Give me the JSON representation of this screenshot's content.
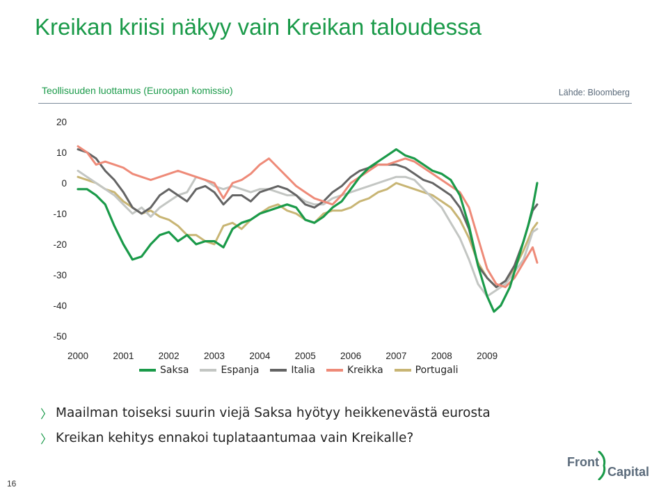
{
  "slide": {
    "title": "Kreikan kriisi näkyy vain Kreikan taloudessa",
    "subtitle": "Teollisuuden luottamus (Euroopan komissio)",
    "source": "Lähde: Bloomberg",
    "page_number": "16",
    "bullets": [
      "Maailman toiseksi suurin viejä Saksa hyötyy heikkenevästä eurosta",
      "Kreikan kehitys ennakoi tuplataantumaa vain Kreikalle?"
    ],
    "logo": {
      "word1": "Front",
      "word2": "Capital"
    }
  },
  "chart_data": {
    "type": "line",
    "title": "Teollisuuden luottamus (Euroopan komissio)",
    "xlabel": "",
    "ylabel": "",
    "x_start": 2000,
    "x_end": 2010.1,
    "xticks": [
      2000,
      2001,
      2002,
      2003,
      2004,
      2005,
      2006,
      2007,
      2008,
      2009
    ],
    "ylim": [
      -50,
      20
    ],
    "yticks": [
      20,
      10,
      0,
      -10,
      -20,
      -30,
      -40,
      -50
    ],
    "grid": false,
    "legend_position": "bottom",
    "series": [
      {
        "name": "Saksa",
        "color": "#1a9a49",
        "width": 3.2,
        "points": [
          [
            2000.0,
            -2
          ],
          [
            2000.2,
            -2
          ],
          [
            2000.4,
            -4
          ],
          [
            2000.6,
            -7
          ],
          [
            2000.8,
            -14
          ],
          [
            2001.0,
            -20
          ],
          [
            2001.2,
            -25
          ],
          [
            2001.4,
            -24
          ],
          [
            2001.6,
            -20
          ],
          [
            2001.8,
            -17
          ],
          [
            2002.0,
            -16
          ],
          [
            2002.2,
            -19
          ],
          [
            2002.4,
            -17
          ],
          [
            2002.6,
            -20
          ],
          [
            2002.8,
            -19
          ],
          [
            2003.0,
            -19
          ],
          [
            2003.2,
            -21
          ],
          [
            2003.4,
            -15
          ],
          [
            2003.6,
            -13
          ],
          [
            2003.8,
            -12
          ],
          [
            2004.0,
            -10
          ],
          [
            2004.2,
            -9
          ],
          [
            2004.4,
            -8
          ],
          [
            2004.6,
            -7
          ],
          [
            2004.8,
            -8
          ],
          [
            2005.0,
            -12
          ],
          [
            2005.2,
            -13
          ],
          [
            2005.4,
            -11
          ],
          [
            2005.6,
            -8
          ],
          [
            2005.8,
            -6
          ],
          [
            2006.0,
            -2
          ],
          [
            2006.2,
            2
          ],
          [
            2006.4,
            5
          ],
          [
            2006.6,
            7
          ],
          [
            2006.8,
            9
          ],
          [
            2007.0,
            11
          ],
          [
            2007.2,
            9
          ],
          [
            2007.4,
            8
          ],
          [
            2007.6,
            6
          ],
          [
            2007.8,
            4
          ],
          [
            2008.0,
            3
          ],
          [
            2008.2,
            1
          ],
          [
            2008.4,
            -4
          ],
          [
            2008.6,
            -14
          ],
          [
            2008.8,
            -27
          ],
          [
            2009.0,
            -37
          ],
          [
            2009.15,
            -42
          ],
          [
            2009.3,
            -40
          ],
          [
            2009.5,
            -34
          ],
          [
            2009.7,
            -24
          ],
          [
            2009.9,
            -14
          ],
          [
            2010.0,
            -8
          ],
          [
            2010.1,
            0
          ]
        ]
      },
      {
        "name": "Espanja",
        "color": "#c3c6c3",
        "width": 3,
        "points": [
          [
            2000.0,
            4
          ],
          [
            2000.2,
            2
          ],
          [
            2000.4,
            0
          ],
          [
            2000.6,
            -2
          ],
          [
            2000.8,
            -4
          ],
          [
            2001.0,
            -7
          ],
          [
            2001.2,
            -10
          ],
          [
            2001.4,
            -8
          ],
          [
            2001.6,
            -11
          ],
          [
            2001.8,
            -8
          ],
          [
            2002.0,
            -6
          ],
          [
            2002.2,
            -4
          ],
          [
            2002.4,
            -3
          ],
          [
            2002.6,
            2
          ],
          [
            2002.8,
            1
          ],
          [
            2003.0,
            -1
          ],
          [
            2003.2,
            -2
          ],
          [
            2003.4,
            -1
          ],
          [
            2003.6,
            -2
          ],
          [
            2003.8,
            -3
          ],
          [
            2004.0,
            -2
          ],
          [
            2004.2,
            -2
          ],
          [
            2004.4,
            -3
          ],
          [
            2004.6,
            -4
          ],
          [
            2004.8,
            -4
          ],
          [
            2005.0,
            -6
          ],
          [
            2005.2,
            -7
          ],
          [
            2005.4,
            -7
          ],
          [
            2005.6,
            -5
          ],
          [
            2005.8,
            -4
          ],
          [
            2006.0,
            -3
          ],
          [
            2006.2,
            -2
          ],
          [
            2006.4,
            -1
          ],
          [
            2006.6,
            0
          ],
          [
            2006.8,
            1
          ],
          [
            2007.0,
            2
          ],
          [
            2007.2,
            2
          ],
          [
            2007.4,
            1
          ],
          [
            2007.6,
            -2
          ],
          [
            2007.8,
            -5
          ],
          [
            2008.0,
            -8
          ],
          [
            2008.2,
            -13
          ],
          [
            2008.4,
            -18
          ],
          [
            2008.6,
            -25
          ],
          [
            2008.8,
            -33
          ],
          [
            2009.0,
            -37
          ],
          [
            2009.2,
            -35
          ],
          [
            2009.4,
            -33
          ],
          [
            2009.6,
            -29
          ],
          [
            2009.8,
            -25
          ],
          [
            2010.0,
            -16
          ],
          [
            2010.1,
            -15
          ]
        ]
      },
      {
        "name": "Italia",
        "color": "#646464",
        "width": 3,
        "points": [
          [
            2000.0,
            11
          ],
          [
            2000.2,
            10
          ],
          [
            2000.4,
            8
          ],
          [
            2000.6,
            4
          ],
          [
            2000.8,
            1
          ],
          [
            2001.0,
            -3
          ],
          [
            2001.2,
            -8
          ],
          [
            2001.4,
            -10
          ],
          [
            2001.6,
            -8
          ],
          [
            2001.8,
            -4
          ],
          [
            2002.0,
            -2
          ],
          [
            2002.2,
            -4
          ],
          [
            2002.4,
            -6
          ],
          [
            2002.6,
            -2
          ],
          [
            2002.8,
            -1
          ],
          [
            2003.0,
            -3
          ],
          [
            2003.2,
            -7
          ],
          [
            2003.4,
            -4
          ],
          [
            2003.6,
            -4
          ],
          [
            2003.8,
            -6
          ],
          [
            2004.0,
            -3
          ],
          [
            2004.2,
            -2
          ],
          [
            2004.4,
            -1
          ],
          [
            2004.6,
            -2
          ],
          [
            2004.8,
            -4
          ],
          [
            2005.0,
            -7
          ],
          [
            2005.2,
            -8
          ],
          [
            2005.4,
            -6
          ],
          [
            2005.6,
            -3
          ],
          [
            2005.8,
            -1
          ],
          [
            2006.0,
            2
          ],
          [
            2006.2,
            4
          ],
          [
            2006.4,
            5
          ],
          [
            2006.6,
            6
          ],
          [
            2006.8,
            6
          ],
          [
            2007.0,
            6
          ],
          [
            2007.2,
            5
          ],
          [
            2007.4,
            3
          ],
          [
            2007.6,
            1
          ],
          [
            2007.8,
            0
          ],
          [
            2008.0,
            -2
          ],
          [
            2008.2,
            -4
          ],
          [
            2008.4,
            -8
          ],
          [
            2008.6,
            -15
          ],
          [
            2008.8,
            -27
          ],
          [
            2009.0,
            -31
          ],
          [
            2009.2,
            -34
          ],
          [
            2009.4,
            -32
          ],
          [
            2009.6,
            -27
          ],
          [
            2009.8,
            -19
          ],
          [
            2010.0,
            -9
          ],
          [
            2010.1,
            -7
          ]
        ]
      },
      {
        "name": "Kreikka",
        "color": "#ee8a78",
        "width": 3,
        "points": [
          [
            2000.0,
            12
          ],
          [
            2000.2,
            10
          ],
          [
            2000.4,
            6
          ],
          [
            2000.6,
            7
          ],
          [
            2000.8,
            6
          ],
          [
            2001.0,
            5
          ],
          [
            2001.2,
            3
          ],
          [
            2001.4,
            2
          ],
          [
            2001.6,
            1
          ],
          [
            2001.8,
            2
          ],
          [
            2002.0,
            3
          ],
          [
            2002.2,
            4
          ],
          [
            2002.4,
            3
          ],
          [
            2002.6,
            2
          ],
          [
            2002.8,
            1
          ],
          [
            2003.0,
            0
          ],
          [
            2003.2,
            -5
          ],
          [
            2003.4,
            0
          ],
          [
            2003.6,
            1
          ],
          [
            2003.8,
            3
          ],
          [
            2004.0,
            6
          ],
          [
            2004.2,
            8
          ],
          [
            2004.4,
            5
          ],
          [
            2004.6,
            2
          ],
          [
            2004.8,
            -1
          ],
          [
            2005.0,
            -3
          ],
          [
            2005.2,
            -5
          ],
          [
            2005.4,
            -6
          ],
          [
            2005.6,
            -7
          ],
          [
            2005.8,
            -4
          ],
          [
            2006.0,
            0
          ],
          [
            2006.2,
            2
          ],
          [
            2006.4,
            4
          ],
          [
            2006.6,
            6
          ],
          [
            2006.8,
            6
          ],
          [
            2007.0,
            7
          ],
          [
            2007.2,
            8
          ],
          [
            2007.4,
            7
          ],
          [
            2007.6,
            5
          ],
          [
            2007.8,
            3
          ],
          [
            2008.0,
            1
          ],
          [
            2008.2,
            -1
          ],
          [
            2008.4,
            -3
          ],
          [
            2008.6,
            -8
          ],
          [
            2008.8,
            -18
          ],
          [
            2009.0,
            -28
          ],
          [
            2009.2,
            -33
          ],
          [
            2009.4,
            -34
          ],
          [
            2009.6,
            -31
          ],
          [
            2009.8,
            -26
          ],
          [
            2010.0,
            -21
          ],
          [
            2010.1,
            -26
          ]
        ]
      },
      {
        "name": "Portugali",
        "color": "#c8b574",
        "width": 3,
        "points": [
          [
            2000.0,
            2
          ],
          [
            2000.2,
            1
          ],
          [
            2000.4,
            0
          ],
          [
            2000.6,
            -2
          ],
          [
            2000.8,
            -3
          ],
          [
            2001.0,
            -6
          ],
          [
            2001.2,
            -8
          ],
          [
            2001.4,
            -10
          ],
          [
            2001.6,
            -9
          ],
          [
            2001.8,
            -11
          ],
          [
            2002.0,
            -12
          ],
          [
            2002.2,
            -14
          ],
          [
            2002.4,
            -17
          ],
          [
            2002.6,
            -17
          ],
          [
            2002.8,
            -19
          ],
          [
            2003.0,
            -20
          ],
          [
            2003.2,
            -14
          ],
          [
            2003.4,
            -13
          ],
          [
            2003.6,
            -15
          ],
          [
            2003.8,
            -12
          ],
          [
            2004.0,
            -10
          ],
          [
            2004.2,
            -8
          ],
          [
            2004.4,
            -7
          ],
          [
            2004.6,
            -9
          ],
          [
            2004.8,
            -10
          ],
          [
            2005.0,
            -12
          ],
          [
            2005.2,
            -13
          ],
          [
            2005.4,
            -10
          ],
          [
            2005.6,
            -9
          ],
          [
            2005.8,
            -9
          ],
          [
            2006.0,
            -8
          ],
          [
            2006.2,
            -6
          ],
          [
            2006.4,
            -5
          ],
          [
            2006.6,
            -3
          ],
          [
            2006.8,
            -2
          ],
          [
            2007.0,
            0
          ],
          [
            2007.2,
            -1
          ],
          [
            2007.4,
            -2
          ],
          [
            2007.6,
            -3
          ],
          [
            2007.8,
            -4
          ],
          [
            2008.0,
            -6
          ],
          [
            2008.2,
            -8
          ],
          [
            2008.4,
            -12
          ],
          [
            2008.6,
            -18
          ],
          [
            2008.8,
            -26
          ],
          [
            2009.0,
            -31
          ],
          [
            2009.2,
            -34
          ],
          [
            2009.4,
            -32
          ],
          [
            2009.6,
            -28
          ],
          [
            2009.8,
            -22
          ],
          [
            2010.0,
            -15
          ],
          [
            2010.1,
            -13
          ]
        ]
      }
    ]
  }
}
